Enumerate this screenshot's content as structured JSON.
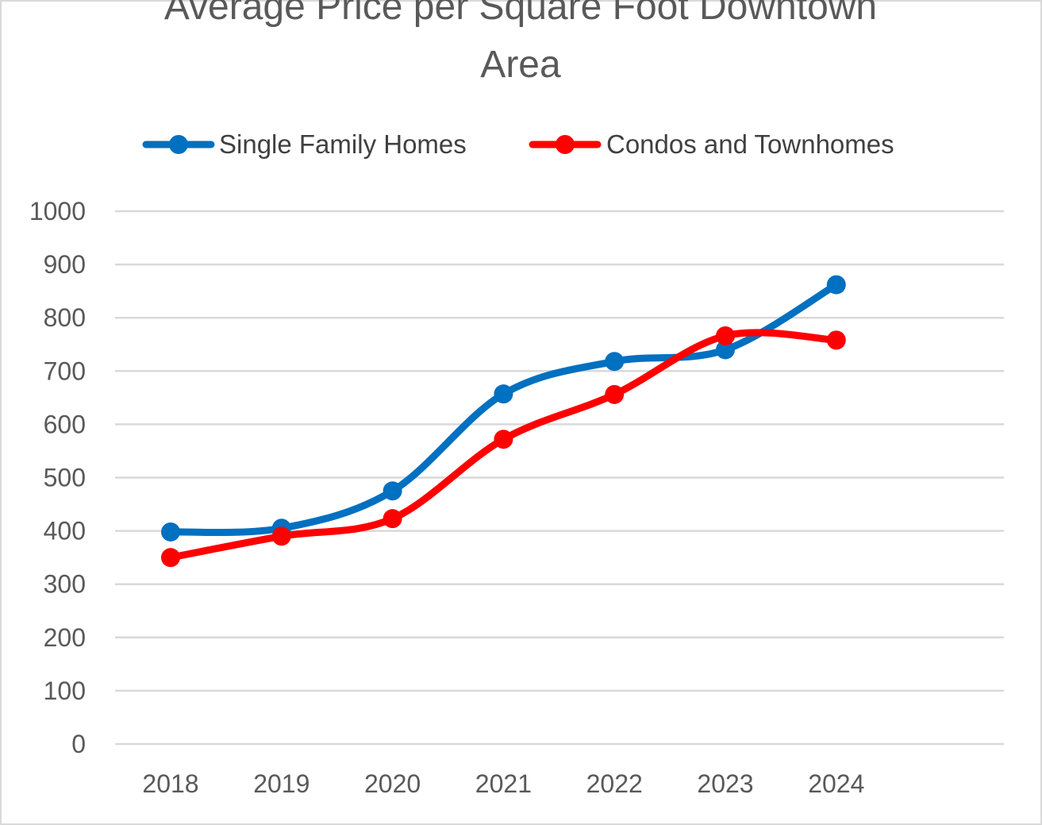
{
  "chart_data": {
    "type": "line",
    "title_lines": [
      "Average Price per Square Foot Downtown",
      "Area"
    ],
    "categories": [
      "2018",
      "2019",
      "2020",
      "2021",
      "2022",
      "2023",
      "2024"
    ],
    "series": [
      {
        "name": "Single Family Homes",
        "color": "#0070c0",
        "values": [
          398,
          405,
          475,
          657,
          718,
          740,
          862
        ]
      },
      {
        "name": "Condos and Townhomes",
        "color": "#ff0000",
        "values": [
          350,
          390,
          423,
          572,
          656,
          766,
          758
        ]
      }
    ],
    "ylim": [
      0,
      1000
    ],
    "yticks": [
      "0",
      "100",
      "200",
      "300",
      "400",
      "500",
      "600",
      "700",
      "800",
      "900",
      "1000"
    ],
    "smooth": true,
    "grid": true,
    "legend_position": "top"
  }
}
